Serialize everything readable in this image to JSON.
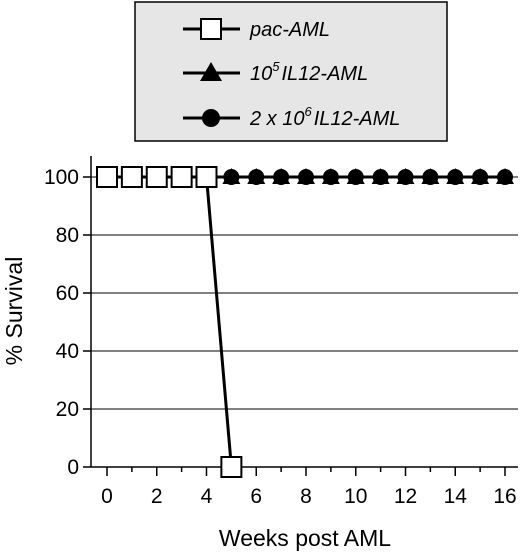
{
  "chart_data": {
    "type": "line",
    "xlabel": "Weeks post AML",
    "ylabel": "% Survival",
    "xlim": [
      0,
      16
    ],
    "ylim": [
      0,
      100
    ],
    "x_ticks": [
      "0",
      "2",
      "4",
      "6",
      "8",
      "10",
      "12",
      "14",
      "16"
    ],
    "y_ticks": [
      "0",
      "20",
      "40",
      "60",
      "80",
      "100"
    ],
    "grid": "horizontal",
    "legend_position": "top",
    "series": [
      {
        "name_parts": [
          "pac-AML"
        ],
        "marker": "open-square",
        "x": [
          0,
          1,
          2,
          3,
          4,
          5
        ],
        "y": [
          100,
          100,
          100,
          100,
          100,
          0
        ]
      },
      {
        "name_parts": [
          "10",
          "5",
          "IL12-AML"
        ],
        "marker": "filled-triangle",
        "x": [
          0,
          1,
          2,
          3,
          4,
          5,
          6,
          7,
          8,
          9,
          10,
          11,
          12,
          13,
          14,
          15,
          16
        ],
        "y": [
          100,
          100,
          100,
          100,
          100,
          100,
          100,
          100,
          100,
          100,
          100,
          100,
          100,
          100,
          100,
          100,
          100
        ]
      },
      {
        "name_parts": [
          "2 x 10",
          "6",
          "IL12-AML"
        ],
        "marker": "filled-circle",
        "x": [
          0,
          1,
          2,
          3,
          4,
          5,
          6,
          7,
          8,
          9,
          10,
          11,
          12,
          13,
          14,
          15,
          16
        ],
        "y": [
          100,
          100,
          100,
          100,
          100,
          100,
          100,
          100,
          100,
          100,
          100,
          100,
          100,
          100,
          100,
          100,
          100
        ]
      }
    ],
    "colors": {
      "line": "#000000",
      "legend_bg": "#e6e6e6",
      "plot_bg": "#ffffff"
    }
  }
}
